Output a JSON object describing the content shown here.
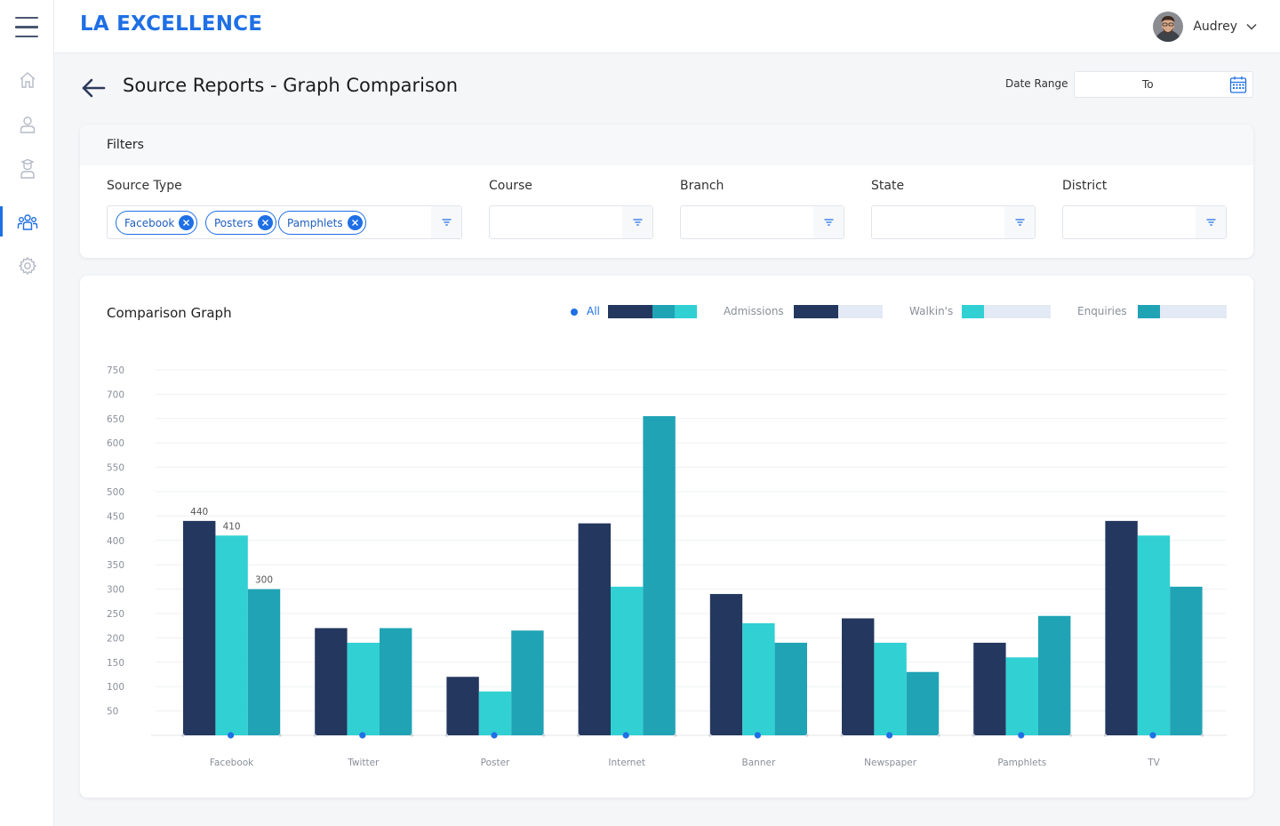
{
  "app": {
    "brand": "LA EXCELLENCE",
    "user_name": "Audrey"
  },
  "sidebar": {
    "items": [
      {
        "name": "home",
        "icon": "home-icon"
      },
      {
        "name": "profile",
        "icon": "user-icon"
      },
      {
        "name": "students",
        "icon": "student-icon"
      },
      {
        "name": "groups",
        "icon": "group-icon",
        "active": true
      },
      {
        "name": "settings",
        "icon": "gear-icon"
      }
    ]
  },
  "header": {
    "title": "Source Reports - Graph Comparison",
    "date_range_label": "Date Range",
    "date_to": "To"
  },
  "filters": {
    "title": "Filters",
    "source_type_label": "Source Type",
    "source_type_chips": [
      "Facebook",
      "Posters",
      "Pamphlets"
    ],
    "course_label": "Course",
    "branch_label": "Branch",
    "state_label": "State",
    "district_label": "District"
  },
  "graph": {
    "title": "Comparison Graph",
    "legend": {
      "all": "All",
      "admissions": "Admissions",
      "walkins": "Walkin's",
      "enquiries": "Enquiries"
    }
  },
  "colors": {
    "accent": "#1f6fe5",
    "admissions": "#24375e",
    "walkins": "#31d0d3",
    "enquiries": "#20a3b5"
  },
  "chart_data": {
    "type": "bar",
    "categories": [
      "Facebook",
      "Twitter",
      "Poster",
      "Internet",
      "Banner",
      "Newspaper",
      "Pamphlets",
      "TV"
    ],
    "series": [
      {
        "name": "Admissions",
        "values": [
          440,
          220,
          120,
          435,
          290,
          240,
          190,
          440
        ]
      },
      {
        "name": "Walkin's",
        "values": [
          410,
          190,
          90,
          305,
          230,
          190,
          160,
          410
        ]
      },
      {
        "name": "Enquiries",
        "values": [
          300,
          220,
          215,
          655,
          190,
          130,
          245,
          305
        ]
      }
    ],
    "data_labels": [
      "440",
      "410",
      "300"
    ],
    "y_ticks": [
      "50",
      "100",
      "150",
      "200",
      "250",
      "300",
      "350",
      "400",
      "450",
      "500",
      "550",
      "600",
      "650",
      "700",
      "750"
    ],
    "ylim": [
      0,
      750
    ],
    "grid": true
  }
}
